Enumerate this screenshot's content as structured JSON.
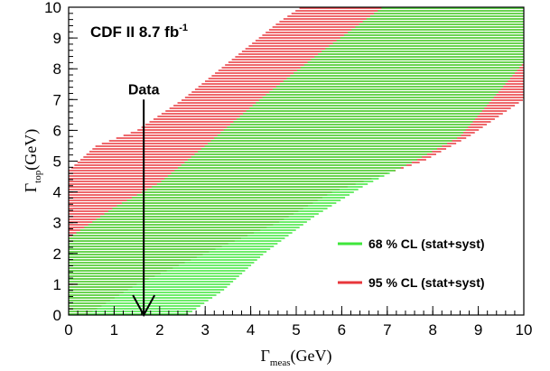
{
  "chart_data": {
    "type": "area",
    "title": "CDF II 8.7 fb",
    "title_superscript": "-1",
    "xlabel": {
      "symbol": "Γ",
      "subscript": "meas",
      "unit": "(GeV)"
    },
    "ylabel": {
      "symbol": "Γ",
      "subscript": "top",
      "unit": "(GeV)"
    },
    "xlim": [
      0,
      10
    ],
    "ylim": [
      0,
      10
    ],
    "x_ticks": [
      0,
      1,
      2,
      3,
      4,
      5,
      6,
      7,
      8,
      9,
      10
    ],
    "y_ticks": [
      0,
      1,
      2,
      3,
      4,
      5,
      6,
      7,
      8,
      9,
      10
    ],
    "grid": false,
    "legend_position": "bottom-right",
    "series": [
      {
        "name": "95 % CL (stat+syst)",
        "color": "#e8363b",
        "lower": [
          [
            0.4,
            0
          ],
          [
            1.5,
            1
          ],
          [
            3.0,
            2
          ],
          [
            4.6,
            3
          ],
          [
            5.8,
            4
          ],
          [
            6.8,
            4.5
          ],
          [
            7.8,
            5
          ],
          [
            8.8,
            5.8
          ],
          [
            10,
            7
          ]
        ],
        "upper": [
          [
            0,
            4.7
          ],
          [
            0.6,
            5.5
          ],
          [
            1.5,
            6.0
          ],
          [
            2.5,
            7.0
          ],
          [
            3.5,
            8.2
          ],
          [
            4.6,
            9.5
          ],
          [
            5.1,
            10
          ]
        ],
        "y_start": 0
      },
      {
        "name": "68 % CL (stat+syst)",
        "color": "#3ee63a",
        "lower": [
          [
            2.6,
            0
          ],
          [
            3.4,
            0.8
          ],
          [
            4.3,
            2
          ],
          [
            5.4,
            3.2
          ],
          [
            6.5,
            4.2
          ],
          [
            7.6,
            5.0
          ],
          [
            8.6,
            5.8
          ],
          [
            10,
            8.2
          ]
        ],
        "upper": [
          [
            0,
            2.5
          ],
          [
            1.0,
            3.5
          ],
          [
            2.0,
            4.3
          ],
          [
            3.0,
            5.5
          ],
          [
            4.2,
            7.0
          ],
          [
            5.5,
            8.5
          ],
          [
            6.9,
            10
          ]
        ],
        "y_start": 0
      }
    ],
    "annotations": [
      {
        "text": "Data",
        "arrow_x": 1.65,
        "arrow_top_y": 7.0,
        "arrow_bottom_y": 0
      }
    ]
  }
}
